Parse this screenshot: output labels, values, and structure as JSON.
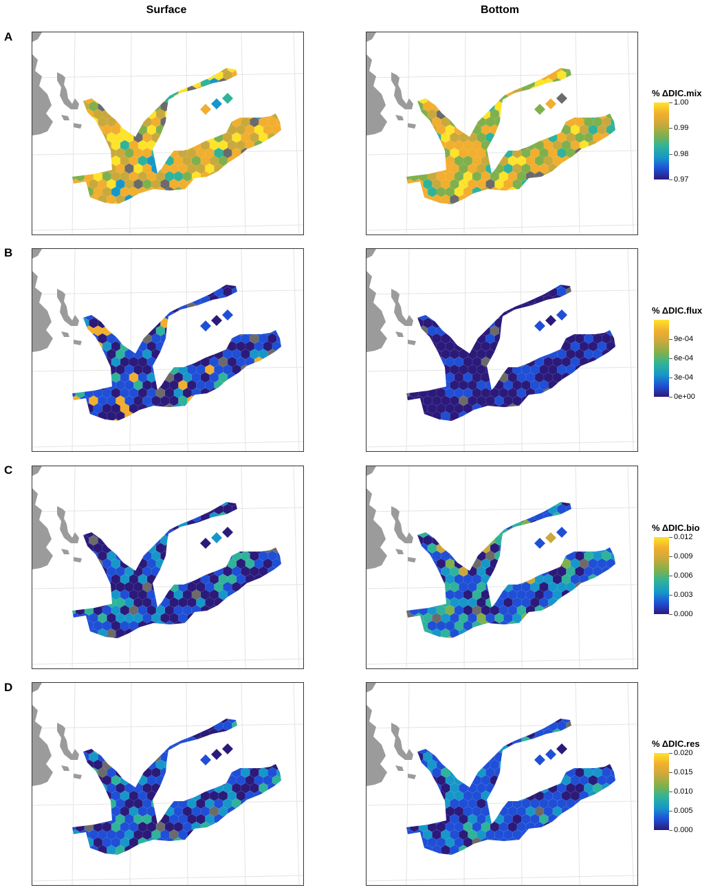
{
  "columns": [
    "Surface",
    "Bottom"
  ],
  "rows": [
    {
      "label": "A",
      "legend": {
        "title": "% ΔDIC.mix",
        "ticks": [
          "1.00",
          "0.99",
          "0.98",
          "0.97"
        ],
        "tick_values": [
          1.0,
          0.99,
          0.98,
          0.97
        ],
        "range": [
          0.97,
          1.0
        ]
      },
      "surface_palette": "mix-surface",
      "bottom_palette": "mix-bottom"
    },
    {
      "label": "B",
      "legend": {
        "title": "% ΔDIC.flux",
        "ticks": [
          "9e-04",
          "6e-04",
          "3e-04",
          "0e+00"
        ],
        "tick_values": [
          0.0009,
          0.0006,
          0.0003,
          0.0
        ],
        "range": [
          0.0,
          0.0012
        ]
      },
      "surface_palette": "flux-surface",
      "bottom_palette": "flux-bottom"
    },
    {
      "label": "C",
      "legend": {
        "title": "% ΔDIC.bio",
        "ticks": [
          "0.012",
          "0.009",
          "0.006",
          "0.003",
          "0.000"
        ],
        "tick_values": [
          0.012,
          0.009,
          0.006,
          0.003,
          0.0
        ],
        "range": [
          0.0,
          0.012
        ]
      },
      "surface_palette": "bio-surface",
      "bottom_palette": "bio-bottom"
    },
    {
      "label": "D",
      "legend": {
        "title": "% ΔDIC.res",
        "ticks": [
          "0.020",
          "0.015",
          "0.010",
          "0.005",
          "0.000"
        ],
        "tick_values": [
          0.02,
          0.015,
          0.01,
          0.005,
          0.0
        ],
        "range": [
          0.0,
          0.02
        ]
      },
      "surface_palette": "res-surface",
      "bottom_palette": "res-bottom"
    }
  ],
  "colors": {
    "scale": [
      "#2b1a7a",
      "#1f4fd6",
      "#1797c9",
      "#2fb39a",
      "#7fb04c",
      "#c9a93c",
      "#f2ae2e",
      "#fde32a"
    ],
    "land": "#9b9b9b",
    "na_cell": "#6b6b6b",
    "graticule": "#e3e3e3"
  }
}
